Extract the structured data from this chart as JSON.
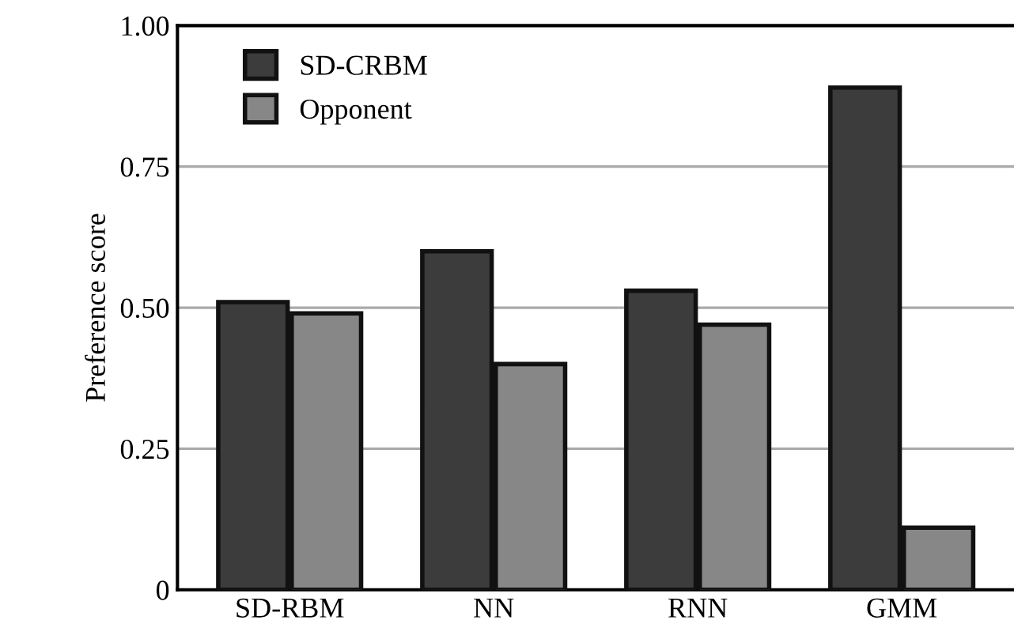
{
  "chart_data": {
    "type": "bar",
    "ylabel": "Preference score",
    "categories": [
      "SD-RBM",
      "NN",
      "RNN",
      "GMM"
    ],
    "series": [
      {
        "name": "SD-CRBM",
        "color": "#3b3c3b",
        "values": [
          0.51,
          0.6,
          0.53,
          0.89
        ]
      },
      {
        "name": "Opponent",
        "color": "#868786",
        "values": [
          0.49,
          0.4,
          0.47,
          0.11
        ]
      }
    ],
    "ylim": [
      0,
      1
    ],
    "yticks": [
      {
        "value": 0,
        "label": "0"
      },
      {
        "value": 0.25,
        "label": "0.25"
      },
      {
        "value": 0.5,
        "label": "0.50"
      },
      {
        "value": 0.75,
        "label": "0.75"
      },
      {
        "value": 1,
        "label": "1.00"
      }
    ],
    "grid": "y",
    "legend": "top left"
  }
}
